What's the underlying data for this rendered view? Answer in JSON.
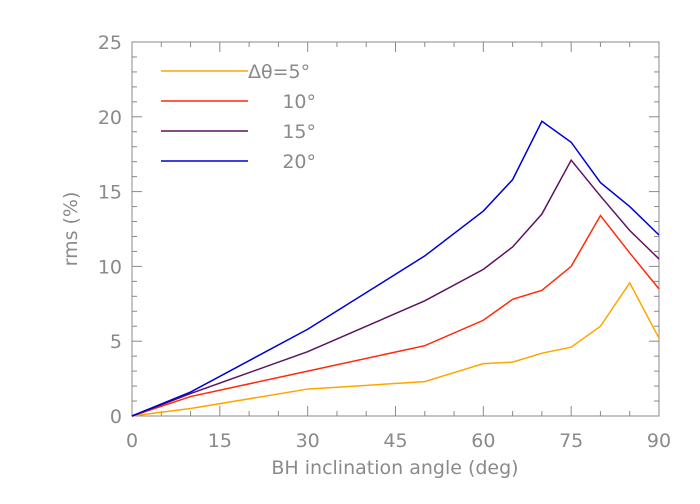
{
  "chart_data": {
    "type": "line",
    "title": "",
    "xlabel": "BH inclination angle (deg)",
    "ylabel": "rms (%)",
    "xlim": [
      0,
      90
    ],
    "ylim": [
      0,
      25
    ],
    "xticks": [
      "0",
      "15",
      "30",
      "45",
      "60",
      "75",
      "90"
    ],
    "yticks": [
      "0",
      "5",
      "10",
      "15",
      "20",
      "25"
    ],
    "grid": false,
    "legend_placement": "top-left",
    "x": [
      0,
      10,
      30,
      50,
      60,
      65,
      70,
      75,
      80,
      85,
      90
    ],
    "series": [
      {
        "name": "Δθ=5°",
        "color": "#ffa500",
        "values": [
          0,
          0.5,
          1.8,
          2.3,
          3.5,
          3.6,
          4.2,
          4.6,
          6.0,
          8.9,
          5.2
        ]
      },
      {
        "name": "10°",
        "color": "#ff2a0a",
        "values": [
          0,
          1.3,
          3.0,
          4.7,
          6.4,
          7.8,
          8.4,
          10.0,
          13.4,
          10.9,
          8.5
        ]
      },
      {
        "name": "15°",
        "color": "#5a1460",
        "values": [
          0,
          1.5,
          4.3,
          7.7,
          9.8,
          11.3,
          13.5,
          17.1,
          14.7,
          12.4,
          10.5
        ]
      },
      {
        "name": "20°",
        "color": "#0000d0",
        "values": [
          0,
          1.6,
          5.8,
          10.7,
          13.7,
          15.8,
          19.7,
          18.3,
          15.6,
          14.0,
          12.1
        ]
      }
    ]
  }
}
